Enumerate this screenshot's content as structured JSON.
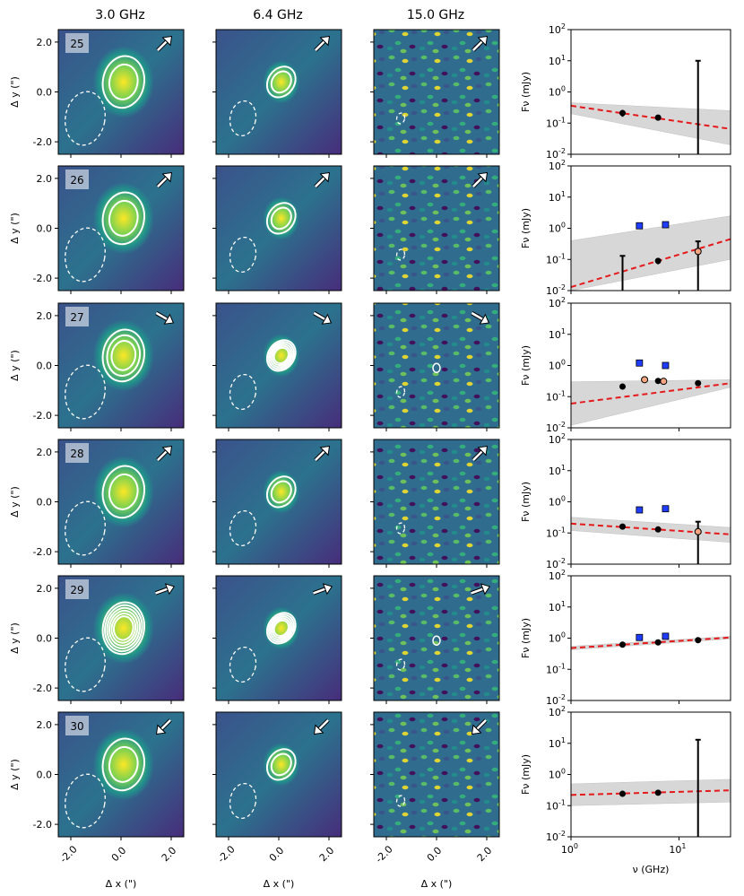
{
  "chart_data": {
    "type": "figure-grid",
    "column_titles": [
      "3.0 GHz",
      "6.4 GHz",
      "15.0 GHz"
    ],
    "image_axes": {
      "xlabel": "Δ x (\")",
      "ylabel": "Δ y (\")",
      "xticks": [
        "-2.0",
        "0.0",
        "2.0"
      ],
      "yticks": [
        "2.0",
        "0.0",
        "-2.0"
      ],
      "range": [
        -2.5,
        2.5
      ]
    },
    "sed_axes": {
      "type": "scatter-loglog",
      "xlabel": "ν (GHz)",
      "ylabel": "F_ν (mJy)",
      "xlim": [
        1,
        30
      ],
      "ylim": [
        0.01,
        100
      ],
      "xticks": [
        "10^0",
        "10^1"
      ],
      "yticks": [
        "10^2",
        "10^1",
        "10^0",
        "10^-1",
        "10^-2"
      ]
    },
    "colors": {
      "fit_line": "#e41a1c",
      "confidence_band": "#bdbdbd",
      "vla_points": "#000000",
      "comparison_points": "#1f3cff",
      "map_low": "#440154",
      "map_mid": "#21918c",
      "map_high": "#fde725"
    },
    "rows": [
      {
        "id": "25",
        "arrow_deg": [
          -45,
          -45,
          -45
        ],
        "points": [
          {
            "x": 3.0,
            "y": 0.21,
            "yerr": 0.05
          },
          {
            "x": 6.4,
            "y": 0.15,
            "yerr": 0.03
          },
          {
            "x": 15.0,
            "y": 0.01,
            "upper": 10.0
          }
        ],
        "squares": [],
        "open": [],
        "fit": {
          "y_at_1": 0.36,
          "y_at_30": 0.065,
          "band_lo_1": 0.2,
          "band_hi_1": 0.45,
          "band_lo_30": 0.02,
          "band_hi_30": 0.25
        }
      },
      {
        "id": "26",
        "arrow_deg": [
          -45,
          -45,
          -45
        ],
        "points": [
          {
            "x": 3.0,
            "y": 0.01,
            "upper": 0.13
          },
          {
            "x": 6.4,
            "y": 0.09,
            "yerr": 0.02
          }
        ],
        "squares": [
          {
            "x": 4.3,
            "y": 1.2
          },
          {
            "x": 7.5,
            "y": 1.3
          }
        ],
        "open": [
          {
            "x": 15.0,
            "y": 0.18,
            "yerr_lo": 0.17,
            "yerr_hi": 0.2
          }
        ],
        "fit": {
          "y_at_1": 0.013,
          "y_at_30": 0.45,
          "band_lo_1": 0.003,
          "band_hi_1": 0.4,
          "band_lo_30": 0.1,
          "band_hi_30": 2.5
        }
      },
      {
        "id": "27",
        "arrow_deg": [
          30,
          30,
          30
        ],
        "points": [
          {
            "x": 3.0,
            "y": 0.21,
            "yerr": 0.03
          },
          {
            "x": 6.4,
            "y": 0.32,
            "yerr": 0.03
          },
          {
            "x": 15.0,
            "y": 0.27,
            "yerr": 0.04
          }
        ],
        "squares": [
          {
            "x": 4.3,
            "y": 1.2
          },
          {
            "x": 7.5,
            "y": 1.0
          }
        ],
        "open": [
          {
            "x": 4.8,
            "y": 0.35
          },
          {
            "x": 7.2,
            "y": 0.31
          }
        ],
        "fit": {
          "y_at_1": 0.06,
          "y_at_30": 0.27,
          "band_lo_1": 0.012,
          "band_hi_1": 0.3,
          "band_lo_30": 0.2,
          "band_hi_30": 0.35
        }
      },
      {
        "id": "28",
        "arrow_deg": [
          -45,
          -45,
          -45
        ],
        "points": [
          {
            "x": 3.0,
            "y": 0.16,
            "yerr": 0.02
          },
          {
            "x": 6.4,
            "y": 0.13,
            "yerr": 0.02
          }
        ],
        "squares": [
          {
            "x": 4.3,
            "y": 0.55
          },
          {
            "x": 7.5,
            "y": 0.6
          }
        ],
        "open": [
          {
            "x": 15.0,
            "y": 0.11,
            "yerr_lo": 0.1,
            "yerr_hi": 0.12
          }
        ],
        "fit": {
          "y_at_1": 0.2,
          "y_at_30": 0.09,
          "band_lo_1": 0.12,
          "band_hi_1": 0.32,
          "band_lo_30": 0.05,
          "band_hi_30": 0.15
        }
      },
      {
        "id": "29",
        "arrow_deg": [
          -20,
          -20,
          -20
        ],
        "points": [
          {
            "x": 3.0,
            "y": 0.62,
            "yerr": 0.05
          },
          {
            "x": 6.4,
            "y": 0.73,
            "yerr": 0.05
          },
          {
            "x": 15.0,
            "y": 0.86,
            "yerr": 0.06
          }
        ],
        "squares": [
          {
            "x": 4.3,
            "y": 1.05
          },
          {
            "x": 7.5,
            "y": 1.15
          }
        ],
        "open": [],
        "fit": {
          "y_at_1": 0.48,
          "y_at_30": 1.05,
          "band_lo_1": 0.42,
          "band_hi_1": 0.55,
          "band_lo_30": 0.95,
          "band_hi_30": 1.15
        }
      },
      {
        "id": "30",
        "arrow_deg": [
          135,
          135,
          135
        ],
        "points": [
          {
            "x": 3.0,
            "y": 0.24,
            "yerr": 0.04
          },
          {
            "x": 6.4,
            "y": 0.26,
            "yerr": 0.03
          },
          {
            "x": 15.0,
            "y": 0.01,
            "upper": 13.0
          }
        ],
        "squares": [],
        "open": [],
        "fit": {
          "y_at_1": 0.22,
          "y_at_30": 0.31,
          "band_lo_1": 0.1,
          "band_hi_1": 0.5,
          "band_lo_30": 0.13,
          "band_hi_30": 0.7
        }
      }
    ]
  }
}
